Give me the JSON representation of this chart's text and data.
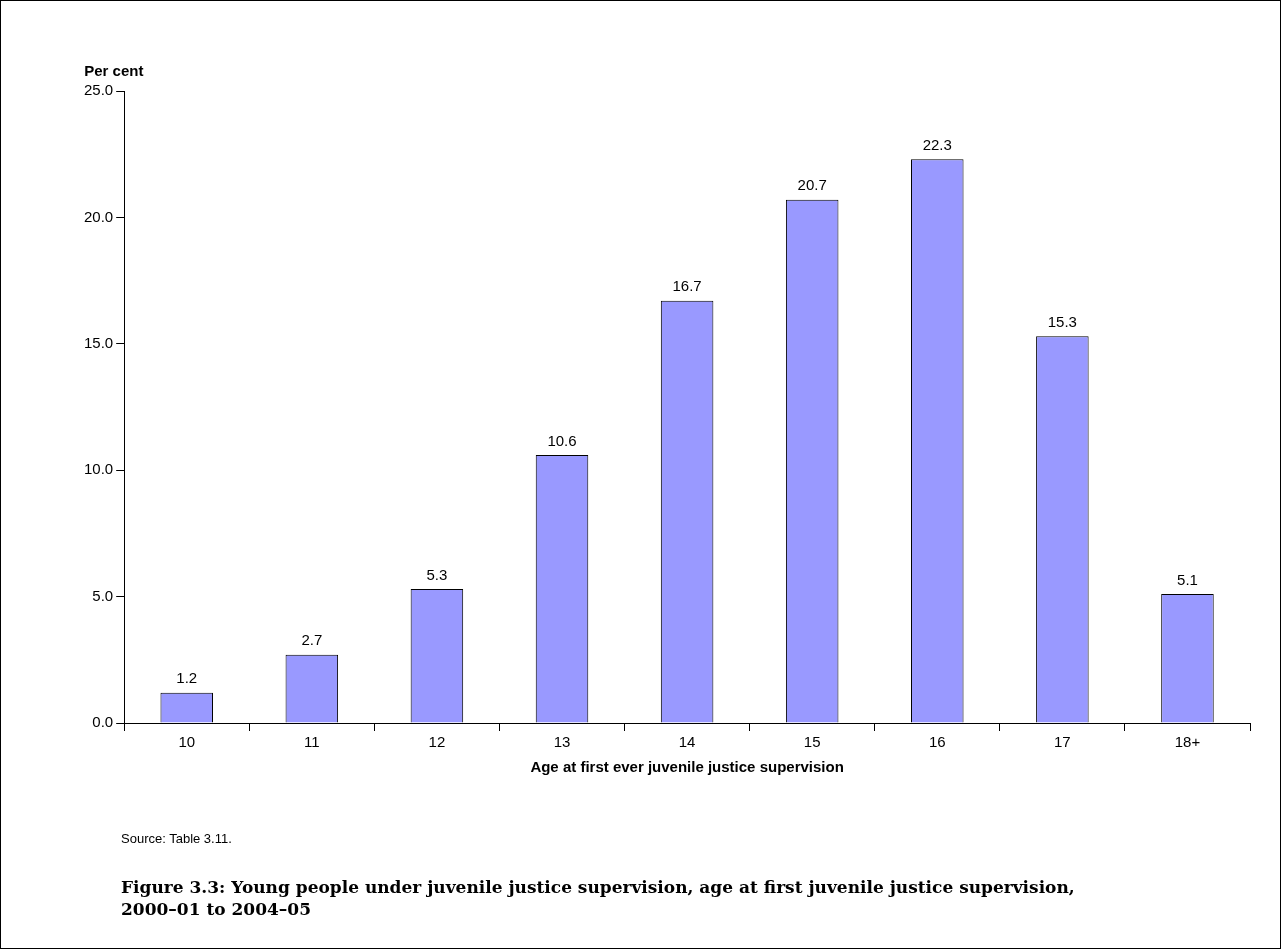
{
  "chart_data": {
    "type": "bar",
    "title": "Figure 3.3: Young people under juvenile justice supervision, age at first juvenile justice supervision, 2000–01 to 2004–05",
    "xlabel": "Age at first ever juvenile justice supervision",
    "ylabel": "Per cent",
    "categories": [
      "10",
      "11",
      "12",
      "13",
      "14",
      "15",
      "16",
      "17",
      "18+"
    ],
    "values": [
      1.2,
      2.7,
      5.3,
      10.6,
      16.7,
      20.7,
      22.3,
      15.3,
      5.1
    ],
    "color": "#9999ff",
    "ylim": [
      0,
      25
    ],
    "yticks": [
      {
        "value": 0,
        "label": "0.0"
      },
      {
        "value": 5,
        "label": "5.0"
      },
      {
        "value": 10,
        "label": "10.0"
      },
      {
        "value": 15,
        "label": "15.0"
      },
      {
        "value": 20,
        "label": "20.0"
      },
      {
        "value": 25,
        "label": "25.0"
      }
    ],
    "data_labels": true,
    "grid": false,
    "legend": false,
    "annotations": [
      "Source: Table 3.11."
    ]
  }
}
